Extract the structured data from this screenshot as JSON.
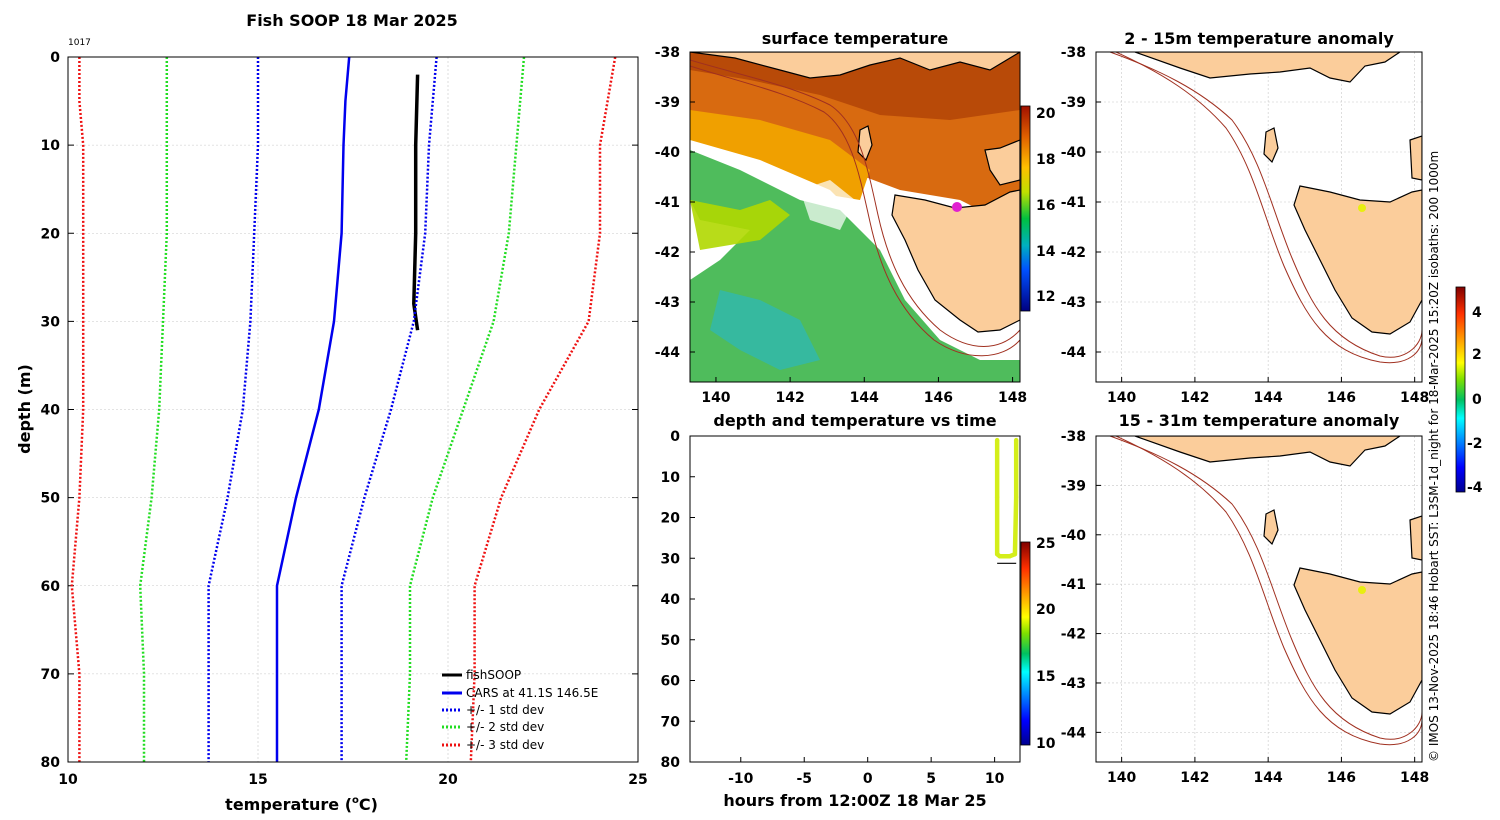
{
  "profile": {
    "title": "Fish SOOP 18 Mar 2025",
    "id_label": "1017",
    "xlabel": "temperature (",
    "xlabel_unit": "o",
    "xlabel_end": "C)",
    "ylabel": "depth (m)",
    "legend": [
      "fishSOOP",
      "CARS at 41.1S 146.5E",
      "+/- 1 std dev",
      "+/- 2 std dev",
      "+/- 3 std dev"
    ],
    "colors": {
      "fishsoop": "#000000",
      "cars": "#0000ee",
      "std1": "#0000ee",
      "std2": "#22dd22",
      "std3": "#ee1111"
    }
  },
  "sst_map": {
    "title": "surface temperature",
    "colorbar_ticks": [
      "20",
      "18",
      "16",
      "14",
      "12"
    ]
  },
  "time_panel": {
    "title": "depth and temperature vs time",
    "xlabel": "hours from 12:00Z 18 Mar 25",
    "colorbar_ticks": [
      "25",
      "20",
      "15",
      "10"
    ]
  },
  "anom1": {
    "title": "2 - 15m temperature anomaly"
  },
  "anom2": {
    "title": "15 - 31m temperature anomaly"
  },
  "anom_colorbar_ticks": [
    "4",
    "2",
    "0",
    "-2",
    "-4"
  ],
  "credit": "© IMOS 13-Nov-2025 18:46 Hobart SST: L3SM-1d_night for 18-Mar-2025 15:20Z isobaths: 200  1000m",
  "chart_data": [
    {
      "type": "line",
      "title": "Fish SOOP 18 Mar 2025",
      "xlabel": "temperature (oC)",
      "ylabel": "depth (m)",
      "xlim": [
        10,
        25
      ],
      "ylim": [
        0,
        80
      ],
      "xticks": [
        "10",
        "15",
        "20",
        "25"
      ],
      "yticks": [
        "0",
        "10",
        "20",
        "30",
        "40",
        "50",
        "60",
        "70",
        "80"
      ],
      "series": [
        {
          "name": "fishSOOP",
          "depth": [
            2,
            10,
            20,
            28,
            31
          ],
          "temp": [
            19.2,
            19.15,
            19.15,
            19.1,
            19.2
          ]
        },
        {
          "name": "CARS at 41.1S 146.5E",
          "depth": [
            0,
            5,
            10,
            20,
            30,
            40,
            50,
            60,
            70,
            80
          ],
          "temp": [
            17.4,
            17.3,
            17.25,
            17.2,
            17.0,
            16.6,
            16.0,
            15.5,
            15.5,
            15.5
          ]
        },
        {
          "name": "+1 std dev",
          "depth": [
            0,
            5,
            10,
            20,
            30,
            40,
            50,
            60,
            70,
            80
          ],
          "temp": [
            19.7,
            19.6,
            19.5,
            19.4,
            19.1,
            18.5,
            17.8,
            17.2,
            17.2,
            17.2
          ]
        },
        {
          "name": "-1 std dev",
          "depth": [
            0,
            5,
            10,
            20,
            30,
            40,
            50,
            60,
            70,
            80
          ],
          "temp": [
            15.0,
            15.0,
            15.0,
            14.9,
            14.8,
            14.6,
            14.2,
            13.7,
            13.7,
            13.7
          ]
        },
        {
          "name": "+2 std dev",
          "depth": [
            0,
            5,
            10,
            20,
            30,
            40,
            50,
            60,
            70,
            80
          ],
          "temp": [
            22.0,
            21.9,
            21.8,
            21.6,
            21.2,
            20.4,
            19.6,
            19.0,
            19.0,
            18.9
          ]
        },
        {
          "name": "-2 std dev",
          "depth": [
            0,
            5,
            10,
            20,
            30,
            40,
            50,
            60,
            70,
            80
          ],
          "temp": [
            12.6,
            12.6,
            12.6,
            12.6,
            12.5,
            12.4,
            12.2,
            11.9,
            12.0,
            12.0
          ]
        },
        {
          "name": "+3 std dev",
          "depth": [
            0,
            5,
            10,
            20,
            30,
            40,
            50,
            60,
            70,
            80
          ],
          "temp": [
            24.4,
            24.2,
            24.0,
            24.0,
            23.7,
            22.4,
            21.4,
            20.7,
            20.7,
            20.6
          ]
        },
        {
          "name": "-3 std dev",
          "depth": [
            0,
            5,
            10,
            20,
            30,
            40,
            50,
            60,
            70,
            80
          ],
          "temp": [
            10.3,
            10.3,
            10.4,
            10.4,
            10.4,
            10.4,
            10.3,
            10.1,
            10.3,
            10.3
          ]
        }
      ]
    },
    {
      "type": "heatmap",
      "title": "surface temperature",
      "xlim": [
        139.3,
        148.2
      ],
      "ylim": [
        -44.6,
        -38
      ],
      "xticks": [
        "140",
        "142",
        "144",
        "146",
        "148"
      ],
      "yticks": [
        "-38",
        "-39",
        "-40",
        "-41",
        "-42",
        "-43",
        "-44"
      ],
      "colorbar_range": [
        11,
        20.3
      ]
    },
    {
      "type": "scatter",
      "title": "depth and temperature vs time",
      "xlabel": "hours from 12:00Z 18 Mar 25",
      "xlim": [
        -14,
        12
      ],
      "ylim": [
        0,
        80
      ],
      "xticks": [
        "-10",
        "-5",
        "0",
        "5",
        "10"
      ],
      "yticks": [
        "0",
        "10",
        "20",
        "30",
        "40",
        "50",
        "60",
        "70",
        "80"
      ],
      "x": [
        10.2,
        10.2,
        10.2,
        10.4,
        11.2,
        11.6,
        11.7,
        11.7
      ],
      "y": [
        1,
        15,
        29,
        29.5,
        29.5,
        29,
        15,
        1
      ],
      "temp": 19.2
    },
    {
      "type": "heatmap",
      "title": "2 - 15m temperature anomaly",
      "xlim": [
        139.3,
        148.2
      ],
      "ylim": [
        -44.6,
        -38
      ],
      "xticks": [
        "140",
        "142",
        "144",
        "146",
        "148"
      ],
      "yticks": [
        "-38",
        "-39",
        "-40",
        "-41",
        "-42",
        "-43",
        "-44"
      ],
      "marker": {
        "lon": 146.5,
        "lat": -41.15,
        "anomaly": 2.2
      }
    },
    {
      "type": "heatmap",
      "title": "15 - 31m temperature anomaly",
      "xlim": [
        139.3,
        148.2
      ],
      "ylim": [
        -44.6,
        -38
      ],
      "xticks": [
        "140",
        "142",
        "144",
        "146",
        "148"
      ],
      "yticks": [
        "-38",
        "-39",
        "-40",
        "-41",
        "-42",
        "-43",
        "-44"
      ],
      "marker": {
        "lon": 146.5,
        "lat": -41.15,
        "anomaly": 2.2
      }
    }
  ]
}
